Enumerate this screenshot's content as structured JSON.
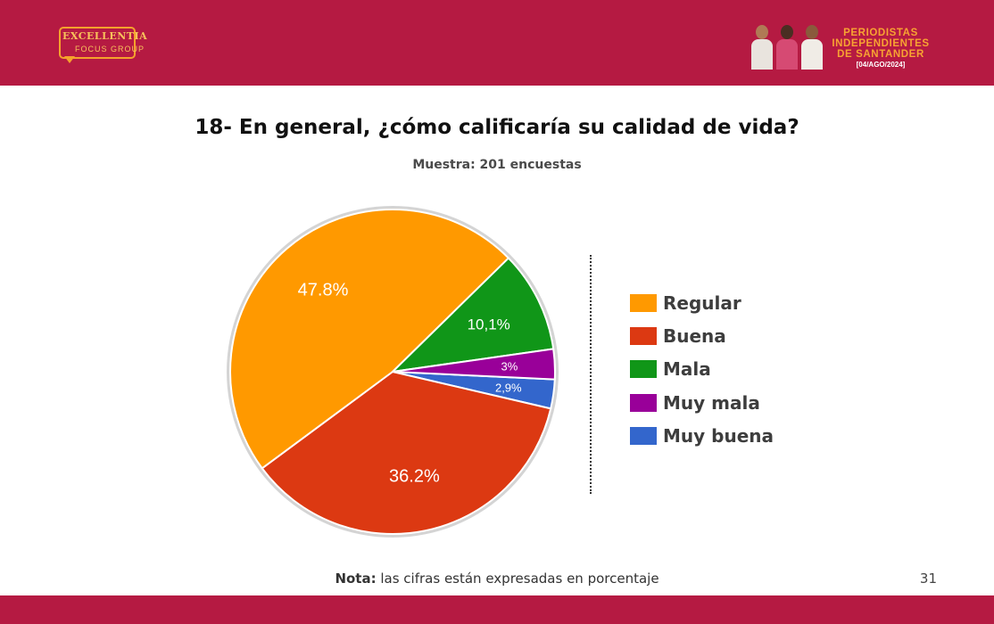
{
  "header": {
    "logo_name": "EXCELLENTIA",
    "logo_sub": "FOCUS GROUP",
    "brand_line1": "PERIODISTAS",
    "brand_line2": "INDEPENDIENTES",
    "brand_line3": "DE SANTANDER",
    "brand_date": "[04/AGO/2024]",
    "accent_color": "#b51a42",
    "brand_color": "#f7a332"
  },
  "chart_data": {
    "type": "pie",
    "title": "18- En general, ¿cómo calificaría su calidad de vida?",
    "subtitle": "Muestra: 201 encuestas",
    "slices": [
      {
        "name": "Regular",
        "value": 47.8,
        "label": "47.8%",
        "color": "#ff9900"
      },
      {
        "name": "Buena",
        "value": 36.2,
        "label": "36.2%",
        "color": "#dc3912"
      },
      {
        "name": "Mala",
        "value": 10.1,
        "label": "10,1%",
        "color": "#109618"
      },
      {
        "name": "Muy mala",
        "value": 3,
        "label": "3%",
        "color": "#990099"
      },
      {
        "name": "Muy buena",
        "value": 2.9,
        "label": "2,9%",
        "color": "#3366cc"
      }
    ],
    "draw_order": [
      "Muy buena",
      "Buena",
      "Regular",
      "Mala",
      "Muy mala"
    ],
    "legend_position": "right"
  },
  "footer": {
    "note_bold": "Nota:",
    "note_text": " las cifras están expresadas en porcentaje",
    "page_number": "31"
  }
}
